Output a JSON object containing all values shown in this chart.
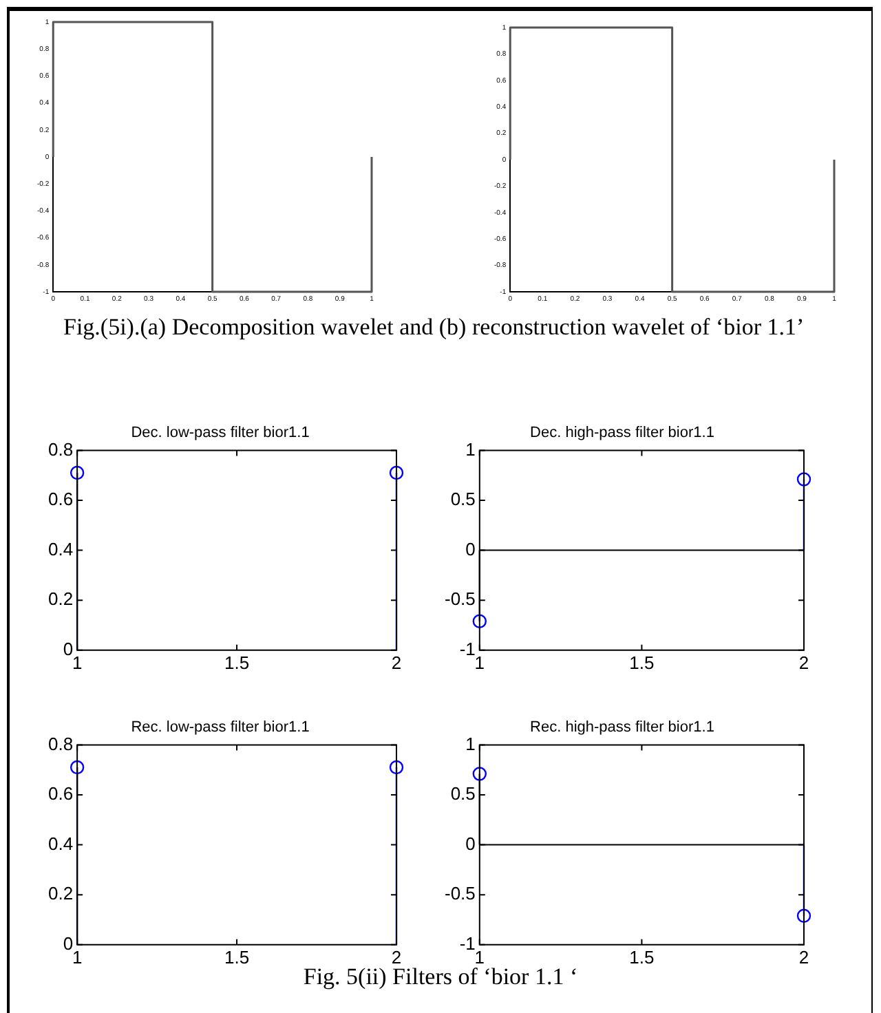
{
  "chart_data": [
    {
      "type": "line",
      "x": [
        0,
        0,
        0.5,
        0.5,
        1,
        1
      ],
      "series": [
        {
          "color": "#555555",
          "values": [
            0,
            1,
            1,
            -1,
            -1,
            0
          ]
        }
      ],
      "xlim": [
        0,
        1
      ],
      "ylim": [
        -1,
        1
      ],
      "xticks": [
        0,
        0.1,
        0.2,
        0.3,
        0.4,
        0.5,
        0.6,
        0.7,
        0.8,
        0.9,
        1
      ],
      "yticks": [
        -1,
        -0.8,
        -0.6,
        -0.4,
        -0.2,
        0,
        0.2,
        0.4,
        0.6,
        0.8,
        1
      ]
    },
    {
      "type": "line",
      "x": [
        0,
        0,
        0.5,
        0.5,
        1,
        1
      ],
      "series": [
        {
          "color": "#555555",
          "values": [
            0,
            1,
            1,
            -1,
            -1,
            0
          ]
        }
      ],
      "xlim": [
        0,
        1
      ],
      "ylim": [
        -1,
        1
      ],
      "xticks": [
        0,
        0.1,
        0.2,
        0.3,
        0.4,
        0.5,
        0.6,
        0.7,
        0.8,
        0.9,
        1
      ],
      "yticks": [
        -1,
        -0.8,
        -0.6,
        -0.4,
        -0.2,
        0,
        0.2,
        0.4,
        0.6,
        0.8,
        1
      ],
      "annotations": [
        "Fig.(5i).(a) Decomposition wavelet and (b) reconstruction wavelet of ‘bior 1.1’"
      ]
    },
    {
      "type": "lollipop",
      "title": "Dec. low-pass filter bior1.1",
      "x": [
        1,
        2
      ],
      "series": [
        {
          "color": "#0000ff",
          "values": [
            0.71,
            0.71
          ]
        }
      ],
      "marker": "circle",
      "xlim": [
        1,
        2
      ],
      "ylim": [
        0,
        0.8
      ],
      "xticks": [
        1,
        1.5,
        2
      ],
      "yticks": [
        0,
        0.2,
        0.4,
        0.6,
        0.8
      ]
    },
    {
      "type": "lollipop",
      "title": "Dec. high-pass filter bior1.1",
      "x": [
        1,
        2
      ],
      "series": [
        {
          "color": "#0000ff",
          "values": [
            -0.71,
            0.71
          ]
        }
      ],
      "marker": "circle",
      "xlim": [
        1,
        2
      ],
      "ylim": [
        -1,
        1
      ],
      "xticks": [
        1,
        1.5,
        2
      ],
      "yticks": [
        -1,
        -0.5,
        0,
        0.5,
        1
      ],
      "ref_lines": [
        {
          "axis": "y",
          "value": 0,
          "color": "#000000"
        }
      ]
    },
    {
      "type": "lollipop",
      "title": "Rec. low-pass filter bior1.1",
      "x": [
        1,
        2
      ],
      "series": [
        {
          "color": "#0000ff",
          "values": [
            0.71,
            0.71
          ]
        }
      ],
      "marker": "circle",
      "xlim": [
        1,
        2
      ],
      "ylim": [
        0,
        0.8
      ],
      "xticks": [
        1,
        1.5,
        2
      ],
      "yticks": [
        0,
        0.2,
        0.4,
        0.6,
        0.8
      ]
    },
    {
      "type": "lollipop",
      "title": "Rec. high-pass filter bior1.1",
      "x": [
        1,
        2
      ],
      "series": [
        {
          "color": "#0000ff",
          "values": [
            0.71,
            -0.71
          ]
        }
      ],
      "marker": "circle",
      "xlim": [
        1,
        2
      ],
      "ylim": [
        -1,
        1
      ],
      "xticks": [
        1,
        1.5,
        2
      ],
      "yticks": [
        -1,
        -0.5,
        0,
        0.5,
        1
      ],
      "ref_lines": [
        {
          "axis": "y",
          "value": 0,
          "color": "#000000"
        }
      ],
      "annotations": [
        "Fig. 5(ii) Filters of  ‘bior 1.1 ‘"
      ]
    }
  ]
}
